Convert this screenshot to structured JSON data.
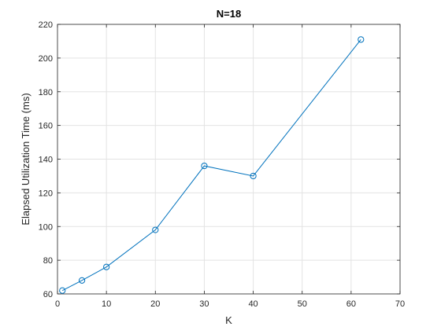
{
  "chart_data": {
    "type": "line",
    "title": "N=18",
    "xlabel": "K",
    "ylabel": "Elapsed Utilization Time (ms)",
    "xlim": [
      0,
      70
    ],
    "ylim": [
      60,
      220
    ],
    "xticks": [
      0,
      10,
      20,
      30,
      40,
      50,
      60,
      70
    ],
    "yticks": [
      60,
      80,
      100,
      120,
      140,
      160,
      180,
      200,
      220
    ],
    "grid": true,
    "marker": "circle",
    "series": [
      {
        "x": [
          1,
          5,
          10,
          20,
          30,
          40,
          62
        ],
        "values": [
          62,
          68,
          76,
          98,
          136,
          130,
          211
        ],
        "color": "#0072BD"
      }
    ]
  }
}
